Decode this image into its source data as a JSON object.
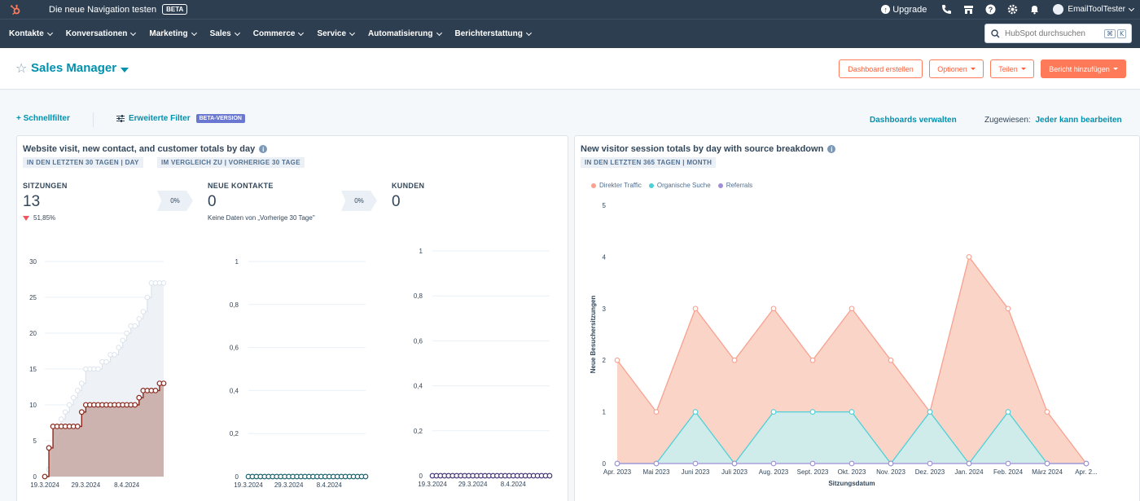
{
  "topbar": {
    "beta_text": "Die neue Navigation testen",
    "beta_badge": "BETA",
    "upgrade": "Upgrade",
    "account_name": "EmailToolTester"
  },
  "nav": {
    "items": [
      "Kontakte",
      "Konversationen",
      "Marketing",
      "Sales",
      "Commerce",
      "Service",
      "Automatisierung",
      "Berichterstattung"
    ],
    "search_placeholder": "HubSpot durchsuchen",
    "shortcut_1": "⌘",
    "shortcut_2": "K"
  },
  "header": {
    "title": "Sales Manager",
    "create_dashboard": "Dashboard erstellen",
    "options": "Optionen",
    "share": "Teilen",
    "add_report": "Bericht hinzufügen"
  },
  "filters": {
    "quick_filter": "Schnellfilter",
    "advanced_filter": "Erweiterte Filter",
    "advanced_badge": "BETA-VERSION",
    "manage_dashboards": "Dashboards verwalten",
    "assigned_label": "Zugewiesen:",
    "assigned_value": "Jeder kann bearbeiten"
  },
  "report1": {
    "title": "Website visit, new contact, and customer totals by day",
    "tag1": "IN DEN LETZTEN 30 TAGEN | DAY",
    "tag2": "IM VERGLEICH ZU | VORHERIGE 30 TAGE",
    "kpis": [
      {
        "label": "SITZUNGEN",
        "value": "13",
        "delta": "51,85%",
        "conversion": "0%"
      },
      {
        "label": "NEUE KONTAKTE",
        "value": "0",
        "note": "Keine Daten von „Vorherige 30 Tage\"",
        "conversion": "0%"
      },
      {
        "label": "KUNDEN",
        "value": "0"
      }
    ],
    "colors": {
      "current": "#8b2a1e",
      "previous": "#dbe3ec",
      "contacts": "#0e5a66",
      "customers": "#3b2a6e"
    }
  },
  "chart_data": [
    {
      "type": "area",
      "title": "",
      "series": [
        {
          "name": "",
          "values": [
            0,
            4,
            7,
            7,
            7,
            7,
            7,
            7,
            7,
            9,
            10,
            10,
            10,
            10,
            10,
            10,
            10,
            10,
            10,
            10,
            10,
            10,
            10,
            11,
            12,
            12,
            12,
            12,
            13,
            13
          ]
        },
        {
          "name": "",
          "values": [
            0,
            1,
            4,
            6,
            8,
            9,
            10,
            11,
            12,
            13,
            15,
            15,
            15,
            15,
            16,
            16,
            17,
            17,
            18,
            19,
            20,
            21,
            21,
            22,
            23,
            25,
            27,
            27,
            27,
            27
          ]
        }
      ],
      "x_tick_labels": [
        "19.3.2024",
        "29.3.2024",
        "8.4.2024"
      ],
      "ylim": [
        0,
        30
      ],
      "y_ticks": [
        0,
        5,
        10,
        15,
        20,
        25,
        30
      ],
      "grid": true
    },
    {
      "type": "line",
      "series": [
        {
          "name": "",
          "values": [
            0,
            0,
            0,
            0,
            0,
            0,
            0,
            0,
            0,
            0,
            0,
            0,
            0,
            0,
            0,
            0,
            0,
            0,
            0,
            0,
            0,
            0,
            0,
            0,
            0,
            0,
            0,
            0,
            0,
            0
          ]
        }
      ],
      "x_tick_labels": [
        "19.3.2024",
        "29.3.2024",
        "8.4.2024"
      ],
      "y_ticks": [
        "0",
        "0,2",
        "0,4",
        "0,6",
        "0,8",
        "1"
      ],
      "ylim": [
        0,
        1
      ],
      "grid": true
    },
    {
      "type": "line",
      "series": [
        {
          "name": "",
          "values": [
            0,
            0,
            0,
            0,
            0,
            0,
            0,
            0,
            0,
            0,
            0,
            0,
            0,
            0,
            0,
            0,
            0,
            0,
            0,
            0,
            0,
            0,
            0,
            0,
            0,
            0,
            0,
            0,
            0,
            0
          ]
        }
      ],
      "x_tick_labels": [
        "19.3.2024",
        "29.3.2024",
        "8.4.2024"
      ],
      "y_ticks": [
        "0",
        "0,2",
        "0,4",
        "0,6",
        "0,8",
        "1"
      ],
      "ylim": [
        0,
        1
      ],
      "grid": true
    },
    {
      "type": "area",
      "title": "New visitor session totals by day with source breakdown",
      "categories": [
        "Apr. 2023",
        "Mai 2023",
        "Juni 2023",
        "Juli 2023",
        "Aug. 2023",
        "Sept. 2023",
        "Okt. 2023",
        "Nov. 2023",
        "Dez. 2023",
        "Jan. 2024",
        "Feb. 2024",
        "März 2024",
        "Apr. 2..."
      ],
      "series": [
        {
          "name": "Direkter Traffic",
          "values": [
            2,
            1,
            3,
            2,
            3,
            2,
            3,
            2,
            1,
            4,
            3,
            1,
            0
          ]
        },
        {
          "name": "Organische Suche",
          "values": [
            0,
            0,
            1,
            0,
            1,
            1,
            1,
            0,
            1,
            0,
            1,
            0,
            0
          ]
        },
        {
          "name": "Referrals",
          "values": [
            0,
            0,
            0,
            0,
            0,
            0,
            0,
            0,
            0,
            0,
            0,
            0,
            0
          ]
        }
      ],
      "xlabel": "Sitzungsdatum",
      "ylabel": "Neue Besuchersitzungen",
      "ylim": [
        0,
        5
      ],
      "y_ticks": [
        0,
        1,
        2,
        3,
        4,
        5
      ],
      "legend": "top-left",
      "colors": [
        "#f8a18f",
        "#4fd0d8",
        "#a18fd6"
      ]
    }
  ],
  "report2": {
    "title": "New visitor session totals by day with source breakdown",
    "tag1": "IN DEN LETZTEN 365 TAGEN | MONTH"
  }
}
